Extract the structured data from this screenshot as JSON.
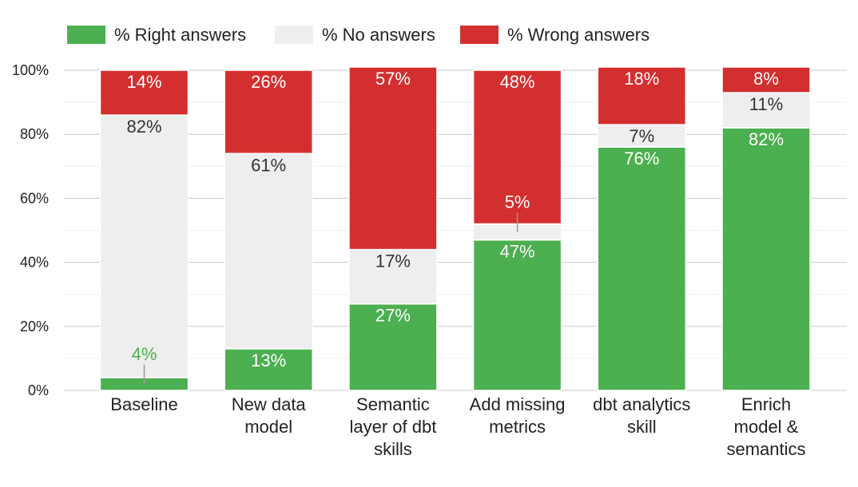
{
  "chart_data": {
    "type": "bar",
    "stacked": true,
    "categories": [
      [
        "Baseline"
      ],
      [
        "New data",
        "model"
      ],
      [
        "Semantic",
        "layer of dbt",
        "skills"
      ],
      [
        "Add missing",
        "metrics"
      ],
      [
        "dbt analytics",
        "skill"
      ],
      [
        "Enrich",
        "model &",
        "semantics"
      ]
    ],
    "series": [
      {
        "name": "% Right answers",
        "color": "#4caf50",
        "values": [
          4,
          13,
          27,
          47,
          76,
          82
        ],
        "labels": [
          "4%",
          "13%",
          "27%",
          "47%",
          "76%",
          "82%"
        ]
      },
      {
        "name": "% No answers",
        "color": "#eeeeee",
        "values": [
          82,
          61,
          17,
          5,
          7,
          11
        ],
        "labels": [
          "82%",
          "61%",
          "17%",
          "5%",
          "7%",
          "11%"
        ]
      },
      {
        "name": "% Wrong answers",
        "color": "#d32f2f",
        "values": [
          14,
          26,
          57,
          48,
          18,
          8
        ],
        "labels": [
          "14%",
          "26%",
          "57%",
          "48%",
          "18%",
          "8%"
        ]
      }
    ],
    "ylim": [
      0,
      100
    ],
    "yticks": [
      "0%",
      "20%",
      "40%",
      "60%",
      "80%",
      "100%"
    ],
    "grid": true,
    "legend_position": "top-left"
  }
}
